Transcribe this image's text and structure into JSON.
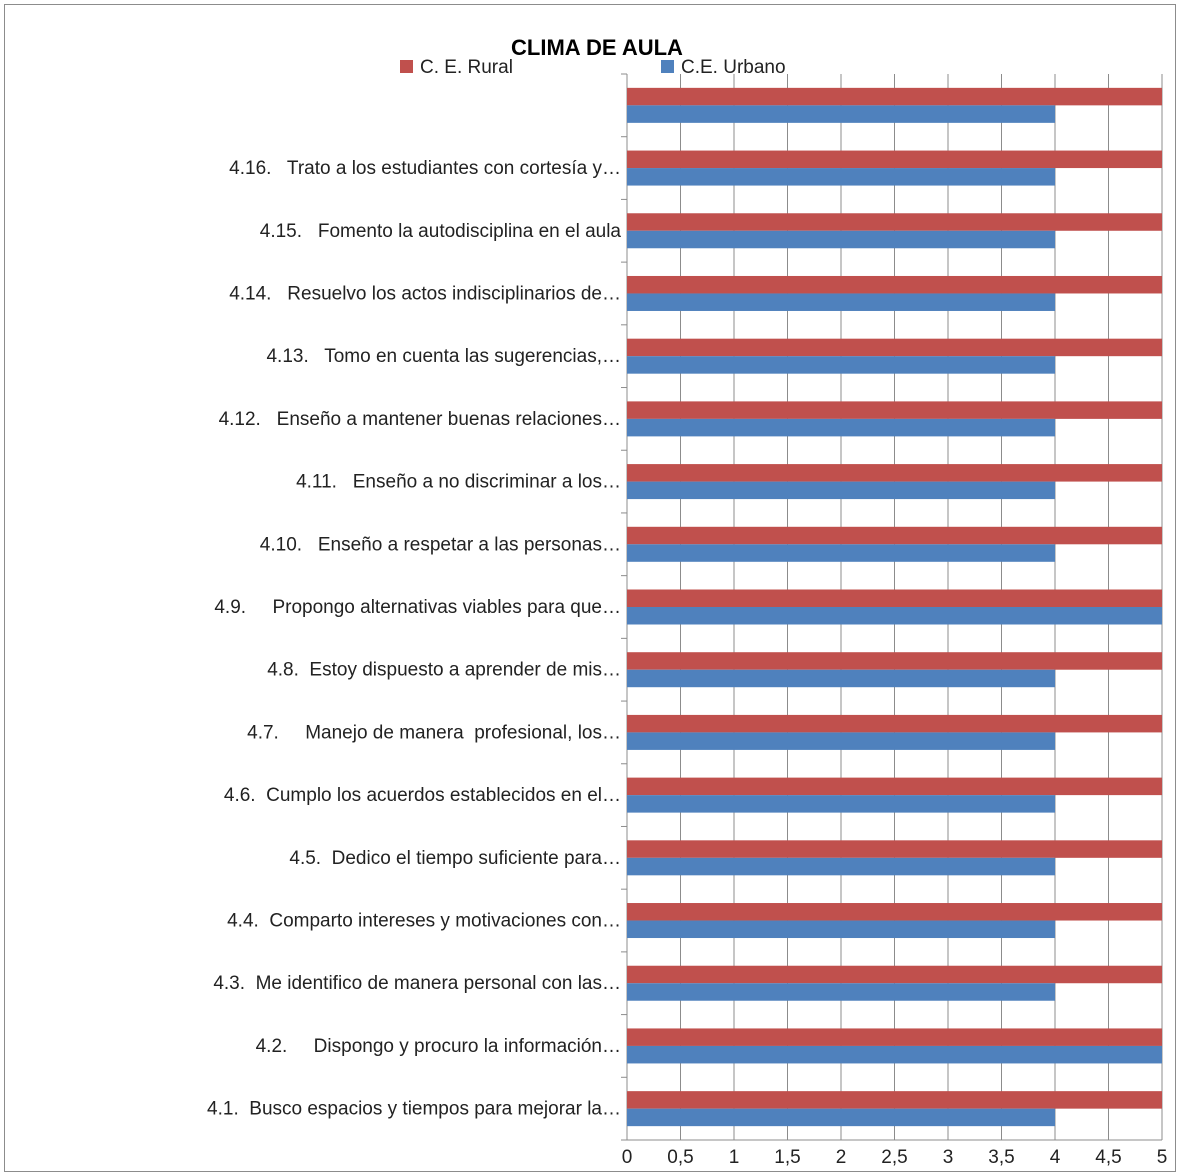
{
  "chart_data": {
    "type": "bar",
    "orientation": "horizontal",
    "title": "CLIMA DE AULA",
    "xlim": [
      0,
      5
    ],
    "xticks": [
      "0",
      "0,5",
      "1",
      "1,5",
      "2",
      "2,5",
      "3",
      "3,5",
      "4",
      "4,5",
      "5"
    ],
    "grid": true,
    "legend_position": "top",
    "categories": [
      "4.1.  Busco espacios y tiempos para mejorar la…",
      "4.2.     Dispongo y procuro la información…",
      "4.3.  Me identifico de manera personal con las…",
      "4.4.  Comparto intereses y motivaciones con…",
      "4.5.  Dedico el tiempo suficiente para…",
      "4.6.  Cumplo los acuerdos establecidos en el…",
      "4.7.     Manejo de manera  profesional, los…",
      "4.8.  Estoy dispuesto a aprender de mis…",
      "4.9.     Propongo alternativas viables para que…",
      "4.10.   Enseño a respetar a las personas…",
      "4.11.   Enseño a no discriminar a los…",
      "4.12.   Enseño a mantener buenas relaciones…",
      "4.13.   Tomo en cuenta las sugerencias,…",
      "4.14.   Resuelvo los actos indisciplinarios de…",
      "4.15.   Fomento la autodisciplina en el aula",
      "4.16.   Trato a los estudiantes con cortesía y…",
      ""
    ],
    "series": [
      {
        "name": "C. E. Rural",
        "color": "#c0504d",
        "values": [
          5,
          5,
          5,
          5,
          5,
          5,
          5,
          5,
          5,
          5,
          5,
          5,
          5,
          5,
          5,
          5,
          5
        ]
      },
      {
        "name": "C.E. Urbano",
        "color": "#4f81bd",
        "values": [
          4,
          5,
          4,
          4,
          4,
          4,
          4,
          4,
          5,
          4,
          4,
          4,
          4,
          4,
          4,
          4,
          4
        ]
      }
    ]
  }
}
